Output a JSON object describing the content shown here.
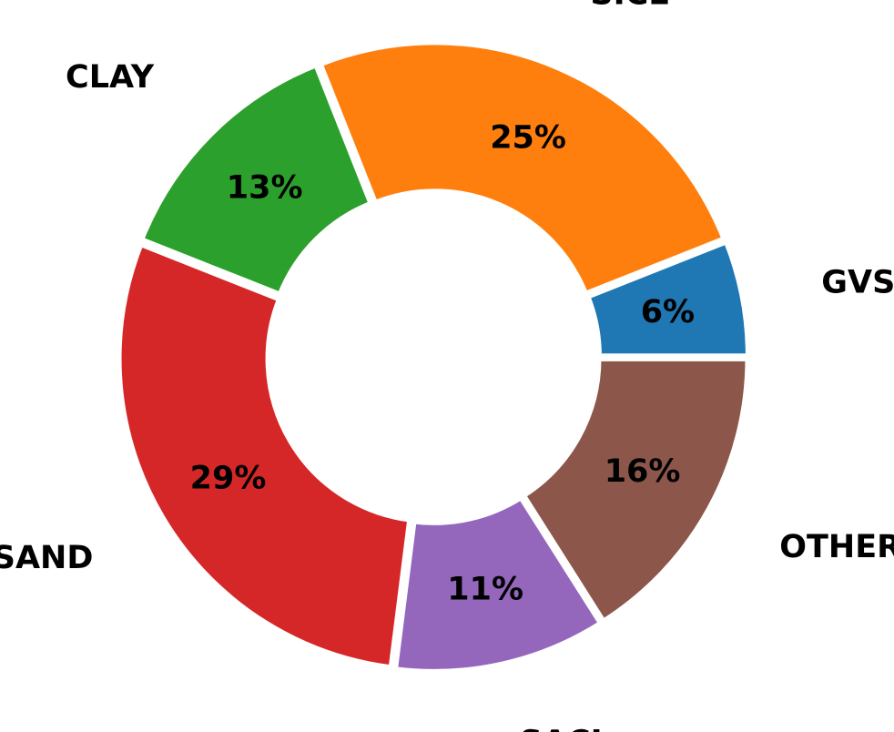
{
  "chart_data": {
    "type": "pie",
    "donut": true,
    "categories": [
      "GVSA",
      "SICL",
      "CLAY",
      "SAND",
      "SACL",
      "OTHER"
    ],
    "values": [
      6,
      25,
      13,
      29,
      11,
      16
    ],
    "percent_labels": [
      "6%",
      "25%",
      "13%",
      "29%",
      "11%",
      "16%"
    ],
    "colors": [
      "#1f77b4",
      "#ff7f0e",
      "#2ca02c",
      "#d62728",
      "#9467bd",
      "#8c564b"
    ],
    "start_angle_deg": 0,
    "direction": "counterclockwise",
    "legend": "none"
  }
}
